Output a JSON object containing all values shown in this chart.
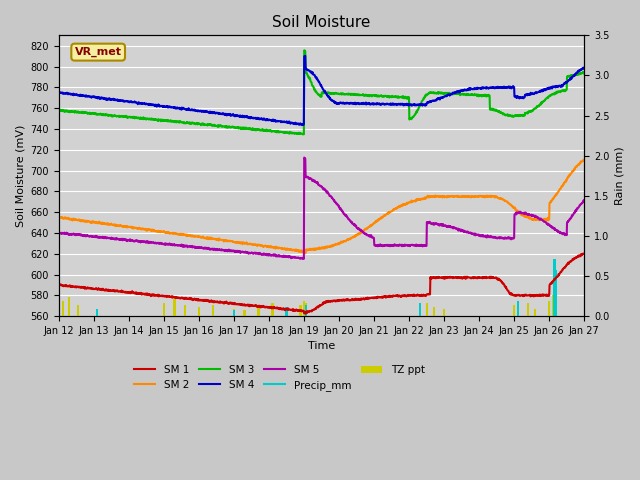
{
  "title": "Soil Moisture",
  "xlabel": "Time",
  "ylabel_left": "Soil Moisture (mV)",
  "ylabel_right": "Rain (mm)",
  "ylim_left": [
    560,
    830
  ],
  "ylim_right": [
    0.0,
    3.5
  ],
  "fig_facecolor": "#c8c8c8",
  "plot_facecolor": "#d0d0d0",
  "colors": {
    "SM1": "#cc0000",
    "SM2": "#ff8800",
    "SM3": "#00bb00",
    "SM4": "#0000cc",
    "SM5": "#aa00aa",
    "Precip": "#00cccc",
    "TZ": "#cccc00"
  },
  "annotation_text": "VR_met",
  "day_start": 12,
  "day_end": 27,
  "yticks": [
    560,
    580,
    600,
    620,
    640,
    660,
    680,
    700,
    720,
    740,
    760,
    780,
    800,
    820
  ],
  "right_yticks": [
    0.0,
    0.5,
    1.0,
    1.5,
    2.0,
    2.5,
    3.0,
    3.5
  ]
}
